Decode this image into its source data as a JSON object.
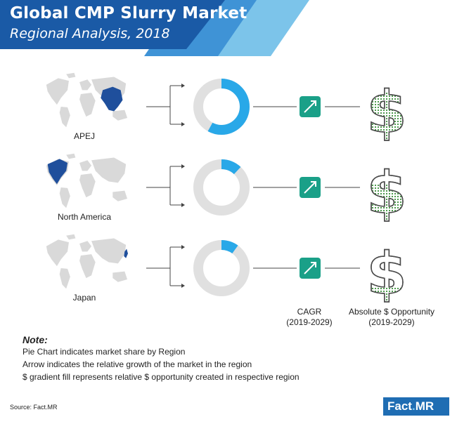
{
  "header": {
    "title": "Global CMP Slurry Market",
    "subtitle": "Regional Analysis, 2018",
    "colors": {
      "dark": "#1a5aa6",
      "mid": "#3f93d6",
      "light": "#7cc4ea"
    }
  },
  "chart_data": {
    "type": "pie",
    "regions": [
      {
        "name": "APEJ",
        "share": 0.58,
        "icon": "trend-up-arrow-icon",
        "dollar_fill": 0.75
      },
      {
        "name": "North America",
        "share": 0.12,
        "icon": "trend-up-arrow-icon",
        "dollar_fill": 0.55
      },
      {
        "name": "Japan",
        "share": 0.1,
        "icon": "trend-up-arrow-icon",
        "dollar_fill": 0.18
      }
    ],
    "colors": {
      "share": "#29a8e8",
      "rest": "#e0e0e0",
      "arrow_box": "#1aa088",
      "dollar_outline": "#4a4a4a",
      "dollar_fill": "#3c8f3c"
    }
  },
  "columns": {
    "cagr": {
      "label": "CAGR",
      "period": "(2019-2029)"
    },
    "opportunity": {
      "label": "Absolute $ Opportunity",
      "period": "(2019-2029)"
    }
  },
  "note": {
    "title": "Note:",
    "lines": [
      "Pie Chart indicates market share by Region",
      "Arrow indicates the relative growth of the market in the region",
      "$ gradient fill represents relative $ opportunity created in respective region"
    ]
  },
  "footer": {
    "source": "Source: Fact.MR",
    "logo_main": "Fact",
    "logo_dot": ".",
    "logo_suffix": "MR"
  }
}
